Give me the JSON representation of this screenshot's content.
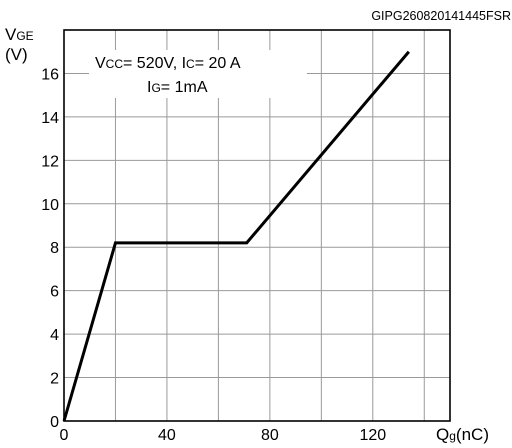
{
  "chart_data": {
    "type": "line",
    "figure_id": "GIPG260820141445FSR",
    "ylabel_main": "V",
    "ylabel_sub": "GE",
    "ylabel_unit": "(V)",
    "xlabel_main": "Q",
    "xlabel_sub": "g",
    "xlabel_unit": "(nC)",
    "annotation_line1": {
      "p1": "V",
      "p1_sub": "CC",
      "p1_rest": "= 520V, I",
      "p2_sub": "C",
      "p2_rest": "= 20 A"
    },
    "annotation_line2": {
      "p1": "I",
      "p1_sub": "G",
      "p1_rest": "= 1mA"
    },
    "xlim": [
      0,
      150
    ],
    "ylim": [
      0,
      18
    ],
    "x_gridlines": [
      0,
      20,
      40,
      60,
      80,
      100,
      120,
      140,
      150
    ],
    "y_gridlines": [
      0,
      2,
      4,
      6,
      8,
      10,
      12,
      14,
      16,
      18
    ],
    "x_ticklabels": [
      "0",
      "40",
      "80",
      "120"
    ],
    "y_ticklabels": [
      "0",
      "2",
      "4",
      "6",
      "8",
      "10",
      "12",
      "14",
      "16"
    ],
    "grid": true,
    "series": [
      {
        "x": [
          0,
          20,
          71,
          134
        ],
        "y": [
          0,
          8.2,
          8.2,
          17.0
        ],
        "color": "#000000"
      }
    ]
  }
}
